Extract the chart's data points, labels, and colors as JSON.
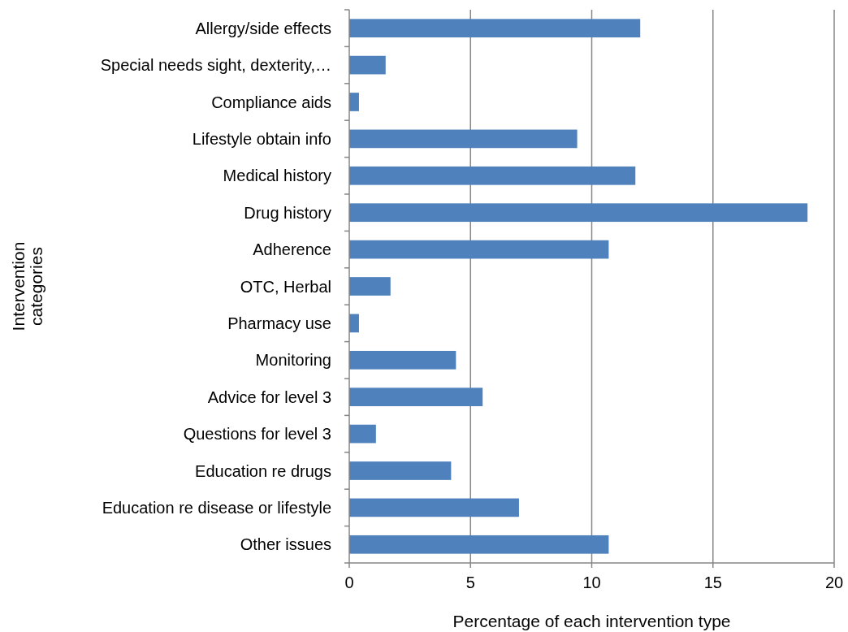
{
  "chart_data": {
    "type": "bar",
    "orientation": "horizontal",
    "xlabel": "Percentage of each intervention type",
    "ylabel": "Intervention categories",
    "categories": [
      "Allergy/side effects",
      "Special needs sight, dexterity,…",
      "Compliance aids",
      "Lifestyle obtain info",
      "Medical history",
      "Drug history",
      "Adherence",
      "OTC, Herbal",
      "Pharmacy use",
      "Monitoring",
      "Advice for level 3",
      "Questions for level 3",
      "Education re drugs",
      "Education re disease or lifestyle",
      "Other issues"
    ],
    "values": [
      12.0,
      1.5,
      0.4,
      9.4,
      11.8,
      18.9,
      10.7,
      1.7,
      0.4,
      4.4,
      5.5,
      1.1,
      4.2,
      7.0,
      10.7
    ],
    "color": "#4f81bd",
    "xlim": [
      0,
      20
    ],
    "xticks": [
      0,
      5,
      10,
      15,
      20
    ],
    "grid": "x"
  }
}
